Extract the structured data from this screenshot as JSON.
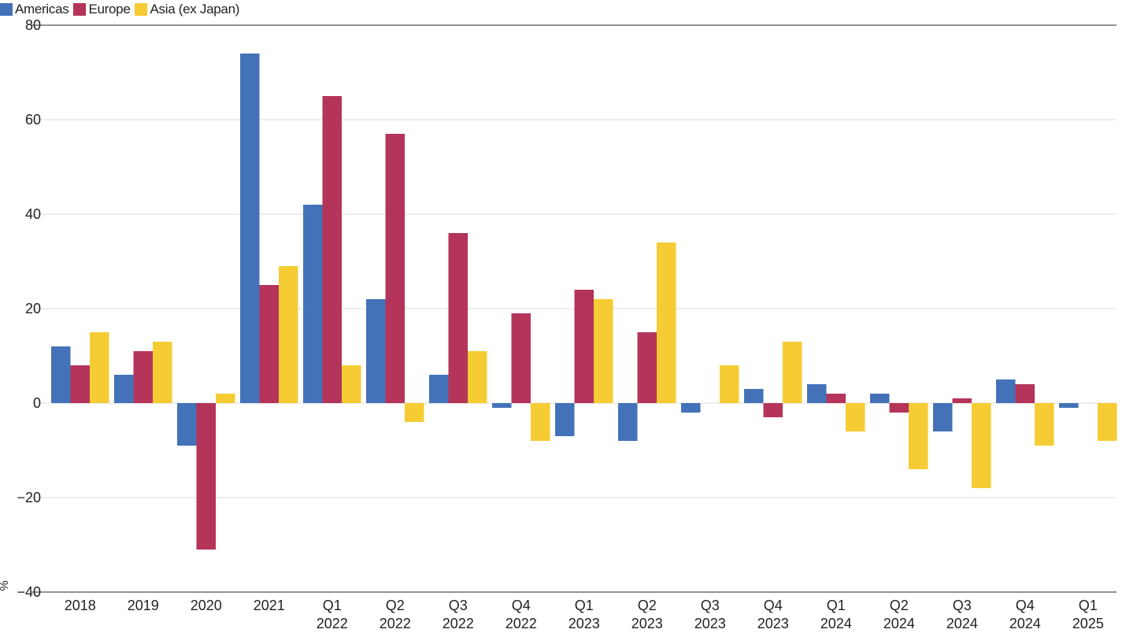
{
  "chart_data": {
    "type": "bar",
    "categories": [
      [
        "2018"
      ],
      [
        "2019"
      ],
      [
        "2020"
      ],
      [
        "2021"
      ],
      [
        "Q1",
        "2022"
      ],
      [
        "Q2",
        "2022"
      ],
      [
        "Q3",
        "2022"
      ],
      [
        "Q4",
        "2022"
      ],
      [
        "Q1",
        "2023"
      ],
      [
        "Q2",
        "2023"
      ],
      [
        "Q3",
        "2023"
      ],
      [
        "Q4",
        "2023"
      ],
      [
        "Q1",
        "2024"
      ],
      [
        "Q2",
        "2024"
      ],
      [
        "Q3",
        "2024"
      ],
      [
        "Q4",
        "2024"
      ],
      [
        "Q1",
        "2025"
      ]
    ],
    "series": [
      {
        "name": "Americas",
        "color": "#4472b8",
        "values": [
          12,
          6,
          -9,
          74,
          42,
          22,
          6,
          -1,
          -7,
          -8,
          -2,
          3,
          4,
          2,
          -6,
          5,
          -1
        ]
      },
      {
        "name": "Europe",
        "color": "#b5345a",
        "values": [
          8,
          11,
          -31,
          25,
          65,
          57,
          36,
          19,
          24,
          15,
          0,
          -3,
          2,
          -2,
          1,
          4,
          0
        ]
      },
      {
        "name": "Asia (ex Japan)",
        "color": "#f5cc33",
        "values": [
          15,
          13,
          2,
          29,
          8,
          -4,
          11,
          -8,
          22,
          34,
          8,
          13,
          -6,
          -14,
          -18,
          -9,
          -8
        ]
      }
    ],
    "yticks": [
      "80",
      "60",
      "40",
      "20",
      "0",
      "−20",
      "−40"
    ],
    "ylim": [
      -40,
      80
    ],
    "ylabel": "%",
    "legend_position": "top-left",
    "grid": true
  }
}
